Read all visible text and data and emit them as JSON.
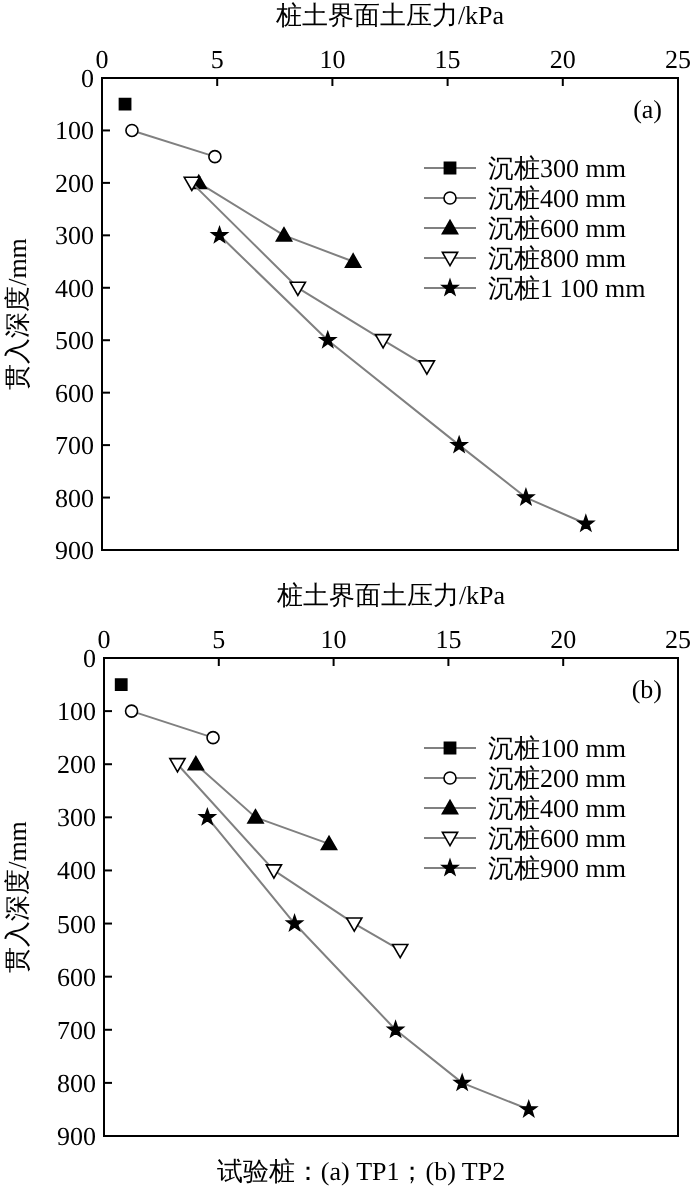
{
  "chart_data": [
    {
      "type": "line",
      "xlabel": "桩土界面土压力/kPa",
      "ylabel": "贯入深度/mm",
      "annotations": [
        "(a)"
      ],
      "xlim": [
        0,
        25
      ],
      "xticks": [
        0,
        5,
        10,
        15,
        20,
        25
      ],
      "ylim": [
        900,
        0
      ],
      "yticks": [
        0,
        100,
        200,
        300,
        400,
        500,
        600,
        700,
        800,
        900
      ],
      "legend": "top right",
      "grid": false,
      "series": [
        {
          "name": "沉桩300 mm",
          "color": "#000000",
          "marker": "square",
          "x": [
            1
          ],
          "values": [
            50
          ]
        },
        {
          "name": "沉桩400 mm",
          "color": "#ffffff",
          "marker": "circle",
          "x": [
            1.3,
            4.9
          ],
          "values": [
            100,
            150
          ]
        },
        {
          "name": "沉桩600 mm",
          "color": "#000000",
          "marker": "triangle",
          "x": [
            4.2,
            7.9,
            10.9
          ],
          "values": [
            200,
            300,
            350
          ]
        },
        {
          "name": "沉桩800 mm",
          "color": "#ffffff",
          "marker": "triangle-down",
          "x": [
            3.9,
            8.5,
            12.2,
            14.1
          ],
          "values": [
            200,
            400,
            500,
            550
          ]
        },
        {
          "name": "沉桩1 100 mm",
          "color": "#000000",
          "marker": "star",
          "x": [
            5.1,
            9.8,
            15.5,
            18.4,
            21
          ],
          "values": [
            300,
            500,
            700,
            800,
            850
          ]
        }
      ]
    },
    {
      "type": "line",
      "xlabel": "桩土界面土压力/kPa",
      "ylabel": "贯入深度/mm",
      "annotations": [
        "(b)",
        "试验桩：(a) TP1；(b) TP2"
      ],
      "xlim": [
        0,
        25
      ],
      "xticks": [
        0,
        5,
        10,
        15,
        20,
        25
      ],
      "ylim": [
        900,
        0
      ],
      "yticks": [
        0,
        100,
        200,
        300,
        400,
        500,
        600,
        700,
        800,
        900
      ],
      "legend": "top right",
      "grid": false,
      "series": [
        {
          "name": "沉桩100 mm",
          "color": "#000000",
          "marker": "square",
          "x": [
            0.75
          ],
          "values": [
            50
          ]
        },
        {
          "name": "沉桩200 mm",
          "color": "#ffffff",
          "marker": "circle",
          "x": [
            1.2,
            4.75
          ],
          "values": [
            100,
            150
          ]
        },
        {
          "name": "沉桩400 mm",
          "color": "#000000",
          "marker": "triangle",
          "x": [
            4,
            6.6,
            9.8
          ],
          "values": [
            200,
            300,
            350
          ]
        },
        {
          "name": "沉桩600 mm",
          "color": "#ffffff",
          "marker": "triangle-down",
          "x": [
            3.2,
            7.4,
            10.9,
            12.9
          ],
          "values": [
            200,
            400,
            500,
            550
          ]
        },
        {
          "name": "沉桩900 mm",
          "color": "#000000",
          "marker": "star",
          "x": [
            4.5,
            8.3,
            12.7,
            15.6,
            18.5
          ],
          "values": [
            300,
            500,
            700,
            800,
            850
          ]
        }
      ]
    }
  ]
}
